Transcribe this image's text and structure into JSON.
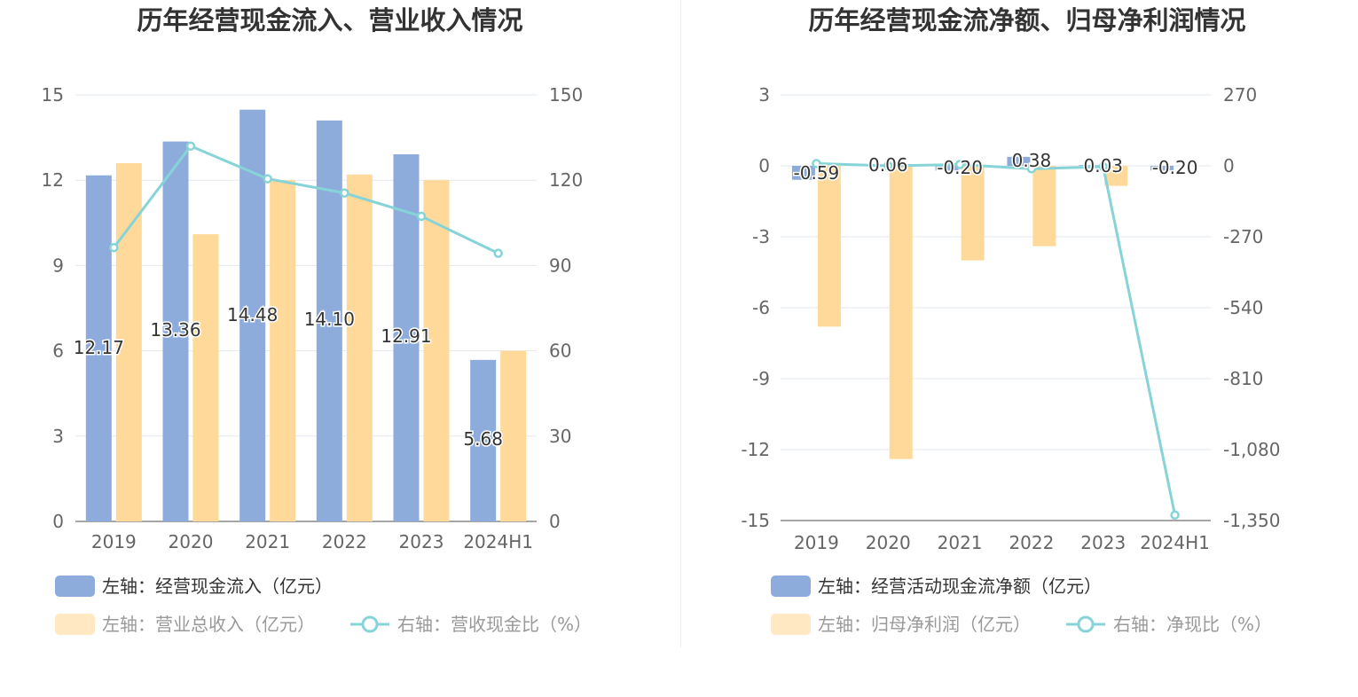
{
  "colors": {
    "inflow": "#8eacdb",
    "revenue": "#ffd99a",
    "line": "#86d4d8",
    "grid": "#e3e8ee",
    "axis": "#999999"
  },
  "charts": [
    {
      "title": "历年经营现金流入、营业收入情况",
      "chart_data": {
        "type": "bar",
        "categories": [
          "2019",
          "2020",
          "2021",
          "2022",
          "2023",
          "2024H1"
        ],
        "left_axis": {
          "min": 0,
          "max": 15,
          "ticks": [
            "0",
            "3",
            "6",
            "9",
            "12",
            "15"
          ]
        },
        "right_axis": {
          "min": 0,
          "max": 150,
          "ticks": [
            "0",
            "30",
            "60",
            "90",
            "120",
            "150"
          ]
        },
        "series": [
          {
            "name": "左轴：经营现金流入（亿元）",
            "type": "bar",
            "axis": "left",
            "color": "#8eacdb",
            "values": [
              12.17,
              13.36,
              14.48,
              14.1,
              12.91,
              5.68
            ],
            "labels": [
              "12.17",
              "13.36",
              "14.48",
              "14.10",
              "12.91",
              "5.68"
            ]
          },
          {
            "name": "左轴：营业总收入（亿元）",
            "type": "bar",
            "axis": "left",
            "color": "#ffd99a",
            "values": [
              12.6,
              10.1,
              12.0,
              12.2,
              12.0,
              6.0
            ]
          },
          {
            "name": "右轴：营收现金比（%）",
            "type": "line",
            "axis": "right",
            "color": "#86d4d8",
            "values": [
              96.3,
              132.0,
              120.5,
              115.5,
              107.3,
              94.3
            ]
          }
        ],
        "grid": true,
        "legend_position": "bottom"
      }
    },
    {
      "title": "历年经营现金流净额、归母净利润情况",
      "chart_data": {
        "type": "bar",
        "categories": [
          "2019",
          "2020",
          "2021",
          "2022",
          "2023",
          "2024H1"
        ],
        "left_axis": {
          "min": -15,
          "max": 3,
          "ticks": [
            "3",
            "0",
            "-3",
            "-6",
            "-9",
            "-12",
            "-15"
          ]
        },
        "right_axis": {
          "min": -1350,
          "max": 270,
          "ticks": [
            "270",
            "0",
            "-270",
            "-540",
            "-810",
            "-1,080",
            "-1,350"
          ]
        },
        "series": [
          {
            "name": "左轴：经营活动现金流净额（亿元）",
            "type": "bar",
            "axis": "left",
            "color": "#8eacdb",
            "values": [
              -0.59,
              0.06,
              -0.2,
              0.38,
              0.03,
              -0.2
            ],
            "labels": [
              "-0.59",
              "0.06",
              "-0.20",
              "0.38",
              "0.03",
              "-0.20"
            ]
          },
          {
            "name": "左轴：归母净利润（亿元）",
            "type": "bar",
            "axis": "left",
            "color": "#ffd99a",
            "values": [
              -6.8,
              -12.4,
              -4.0,
              -3.4,
              -0.85,
              0
            ]
          },
          {
            "name": "右轴：净现比（%）",
            "type": "line",
            "axis": "right",
            "color": "#86d4d8",
            "values": [
              8.7,
              0,
              5.0,
              -11.2,
              -3.5,
              -1329
            ]
          }
        ],
        "grid": true,
        "legend_position": "bottom"
      }
    }
  ]
}
